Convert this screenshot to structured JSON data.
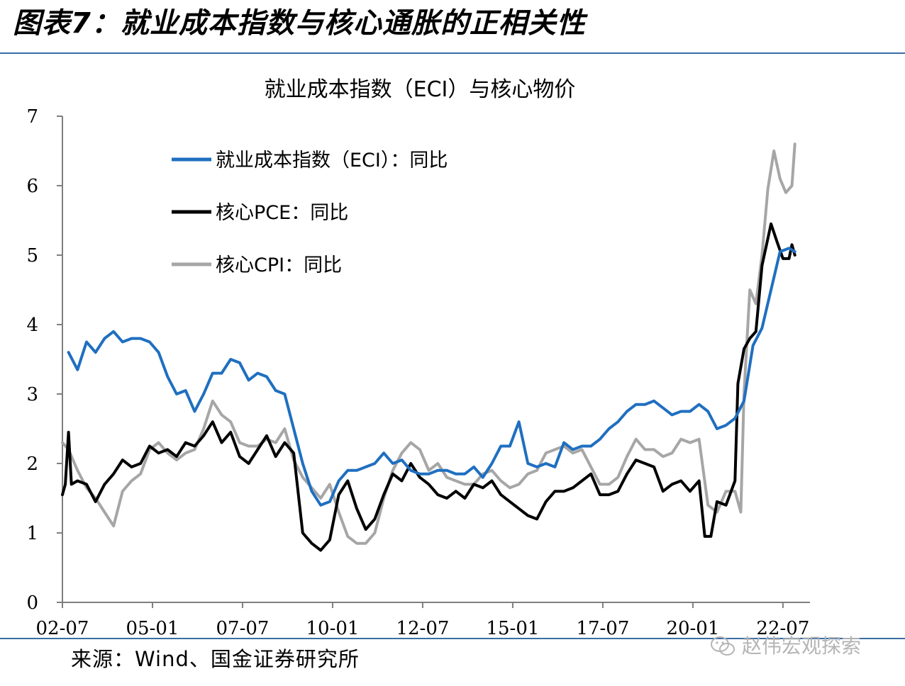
{
  "figure": {
    "heading": "图表7：就业成本指数与核心通胀的正相关性",
    "source": "来源：Wind、国金证券研究所",
    "watermark": "赵伟宏观探索"
  },
  "chart_data": {
    "type": "line",
    "title": "就业成本指数（ECI）与核心物价",
    "xlabel": "",
    "ylabel": "",
    "ylim": [
      0,
      7
    ],
    "yticks": [
      0,
      1,
      2,
      3,
      4,
      5,
      6,
      7
    ],
    "xlim": [
      2002.5,
      2023.25
    ],
    "xticks": [
      {
        "label": "02-07",
        "x": 2002.5
      },
      {
        "label": "05-01",
        "x": 2005.0
      },
      {
        "label": "07-07",
        "x": 2007.5
      },
      {
        "label": "10-01",
        "x": 2010.0
      },
      {
        "label": "12-07",
        "x": 2012.5
      },
      {
        "label": "15-01",
        "x": 2015.0
      },
      {
        "label": "17-07",
        "x": 2017.5
      },
      {
        "label": "20-01",
        "x": 2020.0
      },
      {
        "label": "22-07",
        "x": 2022.5
      }
    ],
    "grid": false,
    "legend_position": "top-left",
    "series": [
      {
        "name": "就业成本指数（ECI）：同比",
        "color": "#1f6fc0",
        "stroke_width": 4,
        "points": [
          [
            2002.67,
            3.6
          ],
          [
            2002.92,
            3.35
          ],
          [
            2003.17,
            3.75
          ],
          [
            2003.42,
            3.6
          ],
          [
            2003.67,
            3.8
          ],
          [
            2003.92,
            3.9
          ],
          [
            2004.17,
            3.75
          ],
          [
            2004.42,
            3.8
          ],
          [
            2004.67,
            3.8
          ],
          [
            2004.92,
            3.75
          ],
          [
            2005.17,
            3.6
          ],
          [
            2005.42,
            3.25
          ],
          [
            2005.67,
            3.0
          ],
          [
            2005.92,
            3.05
          ],
          [
            2006.17,
            2.75
          ],
          [
            2006.42,
            3.0
          ],
          [
            2006.67,
            3.3
          ],
          [
            2006.92,
            3.3
          ],
          [
            2007.17,
            3.5
          ],
          [
            2007.42,
            3.45
          ],
          [
            2007.67,
            3.2
          ],
          [
            2007.92,
            3.3
          ],
          [
            2008.17,
            3.25
          ],
          [
            2008.42,
            3.05
          ],
          [
            2008.67,
            3.0
          ],
          [
            2008.92,
            2.5
          ],
          [
            2009.17,
            2.0
          ],
          [
            2009.42,
            1.6
          ],
          [
            2009.67,
            1.4
          ],
          [
            2009.92,
            1.45
          ],
          [
            2010.17,
            1.75
          ],
          [
            2010.42,
            1.9
          ],
          [
            2010.67,
            1.9
          ],
          [
            2010.92,
            1.95
          ],
          [
            2011.17,
            2.0
          ],
          [
            2011.42,
            2.15
          ],
          [
            2011.67,
            2.0
          ],
          [
            2011.92,
            2.05
          ],
          [
            2012.17,
            1.9
          ],
          [
            2012.42,
            1.85
          ],
          [
            2012.67,
            1.85
          ],
          [
            2012.92,
            1.9
          ],
          [
            2013.17,
            1.9
          ],
          [
            2013.42,
            1.85
          ],
          [
            2013.67,
            1.85
          ],
          [
            2013.92,
            1.95
          ],
          [
            2014.17,
            1.8
          ],
          [
            2014.42,
            2.0
          ],
          [
            2014.67,
            2.25
          ],
          [
            2014.92,
            2.25
          ],
          [
            2015.17,
            2.6
          ],
          [
            2015.42,
            2.0
          ],
          [
            2015.67,
            1.95
          ],
          [
            2015.92,
            2.0
          ],
          [
            2016.17,
            1.95
          ],
          [
            2016.42,
            2.3
          ],
          [
            2016.67,
            2.2
          ],
          [
            2016.92,
            2.25
          ],
          [
            2017.17,
            2.25
          ],
          [
            2017.42,
            2.35
          ],
          [
            2017.67,
            2.5
          ],
          [
            2017.92,
            2.6
          ],
          [
            2018.17,
            2.75
          ],
          [
            2018.42,
            2.85
          ],
          [
            2018.67,
            2.85
          ],
          [
            2018.92,
            2.9
          ],
          [
            2019.17,
            2.8
          ],
          [
            2019.42,
            2.7
          ],
          [
            2019.67,
            2.75
          ],
          [
            2019.92,
            2.75
          ],
          [
            2020.17,
            2.85
          ],
          [
            2020.42,
            2.75
          ],
          [
            2020.67,
            2.5
          ],
          [
            2020.92,
            2.55
          ],
          [
            2021.17,
            2.65
          ],
          [
            2021.42,
            2.9
          ],
          [
            2021.67,
            3.7
          ],
          [
            2021.92,
            3.95
          ],
          [
            2022.17,
            4.5
          ],
          [
            2022.42,
            5.05
          ],
          [
            2022.67,
            5.1
          ],
          [
            2022.83,
            5.05
          ]
        ]
      },
      {
        "name": "核心PCE：同比",
        "color": "#000000",
        "stroke_width": 4,
        "points": [
          [
            2002.5,
            1.55
          ],
          [
            2002.58,
            1.7
          ],
          [
            2002.67,
            2.45
          ],
          [
            2002.75,
            1.7
          ],
          [
            2002.92,
            1.75
          ],
          [
            2003.17,
            1.7
          ],
          [
            2003.42,
            1.45
          ],
          [
            2003.67,
            1.7
          ],
          [
            2003.92,
            1.85
          ],
          [
            2004.17,
            2.05
          ],
          [
            2004.42,
            1.95
          ],
          [
            2004.67,
            2.0
          ],
          [
            2004.92,
            2.25
          ],
          [
            2005.17,
            2.15
          ],
          [
            2005.42,
            2.2
          ],
          [
            2005.67,
            2.1
          ],
          [
            2005.92,
            2.3
          ],
          [
            2006.17,
            2.25
          ],
          [
            2006.42,
            2.4
          ],
          [
            2006.67,
            2.6
          ],
          [
            2006.92,
            2.3
          ],
          [
            2007.17,
            2.45
          ],
          [
            2007.42,
            2.1
          ],
          [
            2007.67,
            2.0
          ],
          [
            2007.92,
            2.2
          ],
          [
            2008.17,
            2.4
          ],
          [
            2008.42,
            2.1
          ],
          [
            2008.67,
            2.3
          ],
          [
            2008.92,
            2.15
          ],
          [
            2009.17,
            1.0
          ],
          [
            2009.42,
            0.85
          ],
          [
            2009.67,
            0.75
          ],
          [
            2009.92,
            0.9
          ],
          [
            2010.17,
            1.55
          ],
          [
            2010.42,
            1.75
          ],
          [
            2010.67,
            1.35
          ],
          [
            2010.92,
            1.05
          ],
          [
            2011.17,
            1.2
          ],
          [
            2011.42,
            1.55
          ],
          [
            2011.67,
            1.85
          ],
          [
            2011.92,
            1.75
          ],
          [
            2012.17,
            2.0
          ],
          [
            2012.42,
            1.8
          ],
          [
            2012.67,
            1.7
          ],
          [
            2012.92,
            1.55
          ],
          [
            2013.17,
            1.5
          ],
          [
            2013.42,
            1.6
          ],
          [
            2013.67,
            1.5
          ],
          [
            2013.92,
            1.7
          ],
          [
            2014.17,
            1.65
          ],
          [
            2014.42,
            1.75
          ],
          [
            2014.67,
            1.55
          ],
          [
            2014.92,
            1.45
          ],
          [
            2015.17,
            1.35
          ],
          [
            2015.42,
            1.25
          ],
          [
            2015.67,
            1.2
          ],
          [
            2015.92,
            1.45
          ],
          [
            2016.17,
            1.6
          ],
          [
            2016.42,
            1.6
          ],
          [
            2016.67,
            1.65
          ],
          [
            2016.92,
            1.75
          ],
          [
            2017.17,
            1.85
          ],
          [
            2017.42,
            1.55
          ],
          [
            2017.67,
            1.55
          ],
          [
            2017.92,
            1.6
          ],
          [
            2018.17,
            1.85
          ],
          [
            2018.42,
            2.05
          ],
          [
            2018.67,
            2.0
          ],
          [
            2018.92,
            1.95
          ],
          [
            2019.17,
            1.6
          ],
          [
            2019.42,
            1.7
          ],
          [
            2019.67,
            1.75
          ],
          [
            2019.92,
            1.6
          ],
          [
            2020.17,
            1.75
          ],
          [
            2020.33,
            0.95
          ],
          [
            2020.5,
            0.95
          ],
          [
            2020.67,
            1.45
          ],
          [
            2020.92,
            1.4
          ],
          [
            2021.17,
            1.75
          ],
          [
            2021.25,
            3.15
          ],
          [
            2021.42,
            3.65
          ],
          [
            2021.58,
            3.8
          ],
          [
            2021.75,
            3.9
          ],
          [
            2021.92,
            4.85
          ],
          [
            2022.17,
            5.45
          ],
          [
            2022.33,
            5.2
          ],
          [
            2022.5,
            4.95
          ],
          [
            2022.67,
            4.95
          ],
          [
            2022.75,
            5.15
          ],
          [
            2022.83,
            5.0
          ]
        ]
      },
      {
        "name": "核心CPI：同比",
        "color": "#a6a6a6",
        "stroke_width": 4,
        "points": [
          [
            2002.5,
            2.3
          ],
          [
            2002.67,
            2.2
          ],
          [
            2002.92,
            1.9
          ],
          [
            2003.17,
            1.65
          ],
          [
            2003.42,
            1.5
          ],
          [
            2003.67,
            1.3
          ],
          [
            2003.92,
            1.1
          ],
          [
            2004.17,
            1.6
          ],
          [
            2004.42,
            1.75
          ],
          [
            2004.67,
            1.85
          ],
          [
            2004.92,
            2.2
          ],
          [
            2005.17,
            2.3
          ],
          [
            2005.42,
            2.15
          ],
          [
            2005.67,
            2.05
          ],
          [
            2005.92,
            2.15
          ],
          [
            2006.17,
            2.2
          ],
          [
            2006.42,
            2.5
          ],
          [
            2006.67,
            2.9
          ],
          [
            2006.92,
            2.7
          ],
          [
            2007.17,
            2.6
          ],
          [
            2007.42,
            2.3
          ],
          [
            2007.67,
            2.25
          ],
          [
            2007.92,
            2.25
          ],
          [
            2008.17,
            2.35
          ],
          [
            2008.42,
            2.3
          ],
          [
            2008.67,
            2.5
          ],
          [
            2008.92,
            2.05
          ],
          [
            2009.17,
            1.8
          ],
          [
            2009.42,
            1.65
          ],
          [
            2009.67,
            1.5
          ],
          [
            2009.92,
            1.7
          ],
          [
            2010.17,
            1.3
          ],
          [
            2010.42,
            0.95
          ],
          [
            2010.67,
            0.85
          ],
          [
            2010.92,
            0.85
          ],
          [
            2011.17,
            1.0
          ],
          [
            2011.42,
            1.5
          ],
          [
            2011.67,
            1.9
          ],
          [
            2011.92,
            2.15
          ],
          [
            2012.17,
            2.3
          ],
          [
            2012.42,
            2.2
          ],
          [
            2012.67,
            1.9
          ],
          [
            2012.92,
            2.0
          ],
          [
            2013.17,
            1.8
          ],
          [
            2013.42,
            1.75
          ],
          [
            2013.67,
            1.7
          ],
          [
            2013.92,
            1.7
          ],
          [
            2014.17,
            1.85
          ],
          [
            2014.42,
            1.9
          ],
          [
            2014.67,
            1.75
          ],
          [
            2014.92,
            1.65
          ],
          [
            2015.17,
            1.7
          ],
          [
            2015.42,
            1.85
          ],
          [
            2015.67,
            1.9
          ],
          [
            2015.92,
            2.15
          ],
          [
            2016.17,
            2.2
          ],
          [
            2016.42,
            2.25
          ],
          [
            2016.67,
            2.15
          ],
          [
            2016.92,
            2.2
          ],
          [
            2017.17,
            1.95
          ],
          [
            2017.42,
            1.7
          ],
          [
            2017.67,
            1.7
          ],
          [
            2017.92,
            1.8
          ],
          [
            2018.17,
            2.1
          ],
          [
            2018.42,
            2.35
          ],
          [
            2018.67,
            2.2
          ],
          [
            2018.92,
            2.2
          ],
          [
            2019.17,
            2.1
          ],
          [
            2019.42,
            2.15
          ],
          [
            2019.67,
            2.35
          ],
          [
            2019.92,
            2.3
          ],
          [
            2020.17,
            2.35
          ],
          [
            2020.42,
            1.4
          ],
          [
            2020.67,
            1.3
          ],
          [
            2020.92,
            1.6
          ],
          [
            2021.17,
            1.6
          ],
          [
            2021.33,
            1.3
          ],
          [
            2021.42,
            3.0
          ],
          [
            2021.58,
            4.5
          ],
          [
            2021.75,
            4.3
          ],
          [
            2021.92,
            5.0
          ],
          [
            2022.08,
            5.95
          ],
          [
            2022.25,
            6.5
          ],
          [
            2022.42,
            6.1
          ],
          [
            2022.58,
            5.9
          ],
          [
            2022.75,
            6.0
          ],
          [
            2022.83,
            6.6
          ]
        ]
      }
    ]
  }
}
